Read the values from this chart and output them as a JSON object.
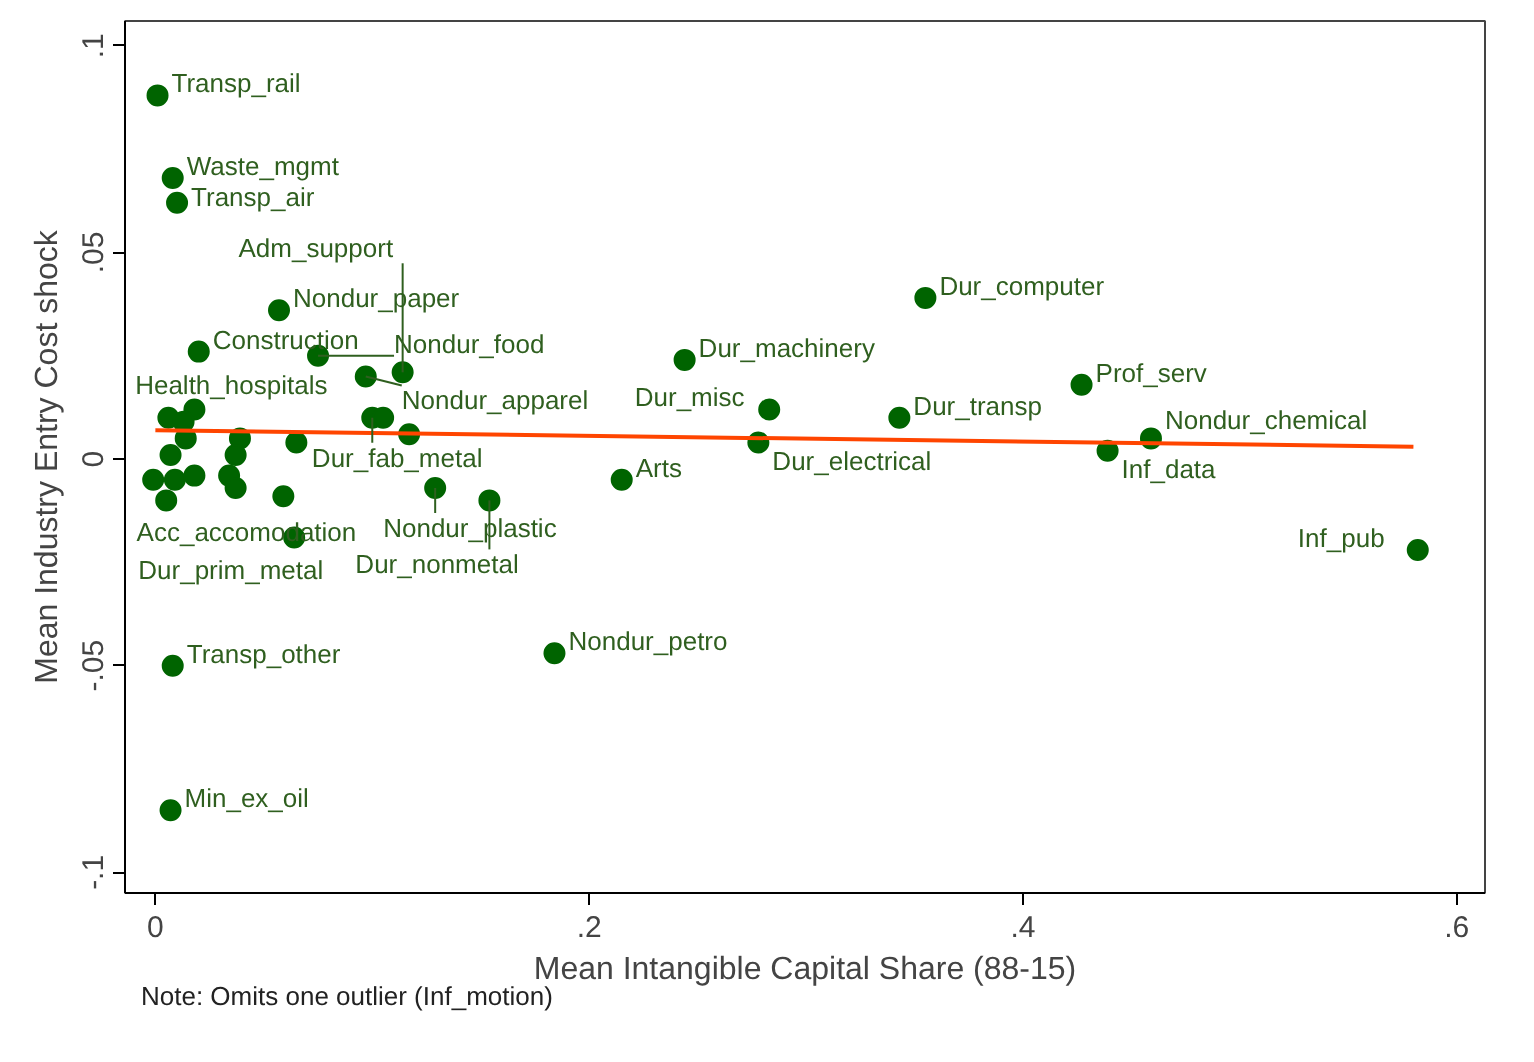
{
  "chart_data": {
    "type": "scatter",
    "xlabel": "Mean Intangible Capital Share (88-15)",
    "ylabel": "Mean Industry Entry Cost shock",
    "xlim": [
      -0.014,
      0.613
    ],
    "ylim": [
      -0.105,
      0.106
    ],
    "xticks": [
      {
        "value": 0,
        "label": "0"
      },
      {
        "value": 0.2,
        "label": ".2"
      },
      {
        "value": 0.4,
        "label": ".4"
      },
      {
        "value": 0.6,
        "label": ".6"
      }
    ],
    "yticks": [
      {
        "value": -0.1,
        "label": "-.1"
      },
      {
        "value": -0.05,
        "label": "-.05"
      },
      {
        "value": 0,
        "label": "0"
      },
      {
        "value": 0.05,
        "label": ".05"
      },
      {
        "value": 0.1,
        "label": ".1"
      }
    ],
    "grid": false,
    "series": [
      {
        "color": "#006400",
        "marker": "circle",
        "x": [
          0.001,
          0.008,
          0.01,
          0.057,
          0.02,
          0.075,
          0.097,
          0.114,
          0.355,
          0.244,
          0.283,
          0.343,
          0.278,
          0.427,
          0.459,
          0.439,
          0.582,
          0.064,
          0.184,
          0.008,
          0.007,
          0.215,
          0.129,
          0.154,
          0.005,
          0.018,
          0.1,
          0.006,
          0.013,
          0.014,
          0.039,
          0.065,
          0.037,
          0.007,
          -0.001,
          0.009,
          0.018,
          0.034,
          0.037,
          0.059,
          0.117,
          0.105
        ],
        "values": [
          0.088,
          0.068,
          0.062,
          0.036,
          0.026,
          0.025,
          0.02,
          0.021,
          0.039,
          0.024,
          0.012,
          0.01,
          0.004,
          0.018,
          0.005,
          0.002,
          -0.022,
          -0.019,
          -0.047,
          -0.05,
          -0.085,
          -0.005,
          -0.007,
          -0.01,
          -0.01,
          0.012,
          0.01,
          0.01,
          0.009,
          0.005,
          0.005,
          0.004,
          0.001,
          0.001,
          -0.005,
          -0.005,
          -0.004,
          -0.004,
          -0.007,
          -0.009,
          0.006,
          0.01
        ]
      },
      {
        "type": "line",
        "marker": "none",
        "color": "#ff4500",
        "x": [
          0,
          0.58
        ],
        "values": [
          0.007,
          0.003
        ]
      }
    ],
    "annotations": [
      {
        "text": "Transp_rail",
        "x": 0.001,
        "y": 0.088
      },
      {
        "text": "Waste_mgmt",
        "x": 0.008,
        "y": 0.068
      },
      {
        "text": "Transp_air",
        "x": 0.01,
        "y": 0.062
      },
      {
        "text": "Nondur_paper",
        "x": 0.057,
        "y": 0.036
      },
      {
        "text": "Construction",
        "x": 0.02,
        "y": 0.026
      },
      {
        "text": "Nondur_food",
        "x": 0.075,
        "y": 0.025
      },
      {
        "text": "Nondur_apparel",
        "x": 0.097,
        "y": 0.02
      },
      {
        "text": "Adm_support",
        "x": 0.114,
        "y": 0.021
      },
      {
        "text": "Dur_computer",
        "x": 0.355,
        "y": 0.039
      },
      {
        "text": "Dur_machinery",
        "x": 0.244,
        "y": 0.024
      },
      {
        "text": "Dur_misc",
        "x": 0.283,
        "y": 0.012
      },
      {
        "text": "Dur_transp",
        "x": 0.343,
        "y": 0.01
      },
      {
        "text": "Dur_electrical",
        "x": 0.278,
        "y": 0.004
      },
      {
        "text": "Prof_serv",
        "x": 0.427,
        "y": 0.018
      },
      {
        "text": "Nondur_chemical",
        "x": 0.459,
        "y": 0.005
      },
      {
        "text": "Inf_data",
        "x": 0.439,
        "y": 0.002
      },
      {
        "text": "Inf_pub",
        "x": 0.582,
        "y": -0.022
      },
      {
        "text": "Dur_prim_metal",
        "x": 0.064,
        "y": -0.019
      },
      {
        "text": "Nondur_petro",
        "x": 0.184,
        "y": -0.047
      },
      {
        "text": "Transp_other",
        "x": 0.008,
        "y": -0.05
      },
      {
        "text": "Min_ex_oil",
        "x": 0.007,
        "y": -0.085
      },
      {
        "text": "Arts",
        "x": 0.215,
        "y": -0.005
      },
      {
        "text": "Nondur_plastic",
        "x": 0.129,
        "y": -0.007
      },
      {
        "text": "Dur_nonmetal",
        "x": 0.154,
        "y": -0.01
      },
      {
        "text": "Acc_accomodation",
        "x": 0.005,
        "y": -0.01
      },
      {
        "text": "Health_hospitals",
        "x": 0.018,
        "y": 0.012
      },
      {
        "text": "Dur_fab_metal",
        "x": 0.1,
        "y": 0.01
      },
      "Note: Omits one outlier (Inf_motion)"
    ]
  }
}
